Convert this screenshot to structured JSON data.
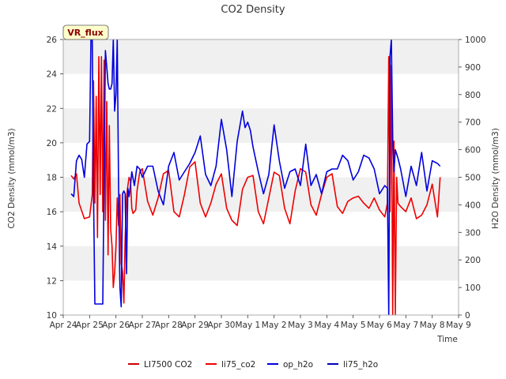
{
  "chart_data": {
    "type": "line",
    "title": "CO2 Density",
    "xlabel": "Time",
    "ylabel": "CO2 Density (mmol/m3)",
    "y2label": "H2O Density (mmol/m3)",
    "badge": "VR_flux",
    "ylim": [
      10,
      26
    ],
    "y2lim": [
      0,
      1000
    ],
    "xlim": [
      0,
      15
    ],
    "x_ticks": [
      "Apr 24",
      "Apr 25",
      "Apr 26",
      "Apr 27",
      "Apr 28",
      "Apr 29",
      "Apr 30",
      "May 1",
      "May 2",
      "May 3",
      "May 4",
      "May 5",
      "May 6",
      "May 7",
      "May 8",
      "May 9"
    ],
    "y_ticks": [
      10,
      12,
      14,
      16,
      18,
      20,
      22,
      24,
      26
    ],
    "y2_ticks": [
      0,
      100,
      200,
      300,
      400,
      500,
      600,
      700,
      800,
      900,
      1000
    ],
    "grid": "horizontal bands",
    "legend_position": "bottom",
    "colors": {
      "li75_co2": "#ee0000",
      "li7500_co2": "#cc0000",
      "op_h2o": "#0000dd",
      "li75_h2o": "#0000bb",
      "band": "#f0f0f0",
      "badge_bg": "#ffffcc"
    },
    "legend": [
      "LI7500 CO2",
      "li75_co2",
      "op_h2o",
      "li75_h2o"
    ],
    "series": [
      {
        "name": "li75_co2",
        "axis": "left",
        "color": "#ee0000",
        "x": [
          0.3,
          0.4,
          0.5,
          0.6,
          0.8,
          1.0,
          1.1,
          1.15,
          1.2,
          1.25,
          1.3,
          1.35,
          1.4,
          1.45,
          1.5,
          1.55,
          1.6,
          1.65,
          1.7,
          1.75,
          1.8,
          1.85,
          1.9,
          1.95,
          2.0,
          2.05,
          2.1,
          2.15,
          2.2,
          2.25,
          2.3,
          2.35,
          2.4,
          2.45,
          2.5,
          2.55,
          2.6,
          2.65,
          2.7,
          2.75,
          2.8,
          2.9,
          3.0,
          3.2,
          3.4,
          3.6,
          3.8,
          4.0,
          4.2,
          4.4,
          4.6,
          4.8,
          5.0,
          5.2,
          5.4,
          5.6,
          5.8,
          6.0,
          6.2,
          6.4,
          6.6,
          6.8,
          7.0,
          7.2,
          7.4,
          7.6,
          7.8,
          8.0,
          8.2,
          8.4,
          8.6,
          8.8,
          9.0,
          9.2,
          9.4,
          9.6,
          9.8,
          10.0,
          10.2,
          10.4,
          10.6,
          10.8,
          11.0,
          11.2,
          11.4,
          11.6,
          11.8,
          12.0,
          12.2,
          12.3,
          12.35,
          12.4,
          12.45,
          12.5,
          12.55,
          12.6,
          12.65,
          12.7,
          12.8,
          13.0,
          13.2,
          13.4,
          13.6,
          13.8,
          14.0,
          14.2,
          14.3
        ],
        "values": [
          18.1,
          17.9,
          18.2,
          16.5,
          15.6,
          15.7,
          17.0,
          23.6,
          16.5,
          22.7,
          14.5,
          25.0,
          17.0,
          25.0,
          16.0,
          24.8,
          15.5,
          22.4,
          13.5,
          21.0,
          15.0,
          14.0,
          11.6,
          12.5,
          14.0,
          16.8,
          15.2,
          17.0,
          13.0,
          12.5,
          10.7,
          14.5,
          16.8,
          17.5,
          18.0,
          17.8,
          16.2,
          15.9,
          16.0,
          16.1,
          17.2,
          18.3,
          18.5,
          16.6,
          15.8,
          16.8,
          18.2,
          18.4,
          16.0,
          15.7,
          17.0,
          18.6,
          18.9,
          16.5,
          15.7,
          16.5,
          17.6,
          18.2,
          16.2,
          15.5,
          15.2,
          17.3,
          18.0,
          18.1,
          16.0,
          15.3,
          16.8,
          18.3,
          18.1,
          16.2,
          15.3,
          17.2,
          18.5,
          18.3,
          16.4,
          15.8,
          17.0,
          18.0,
          18.2,
          16.3,
          15.9,
          16.6,
          16.8,
          16.9,
          16.5,
          16.2,
          16.8,
          16.1,
          15.7,
          16.5,
          25.0,
          16.0,
          24.5,
          10.0,
          20.1,
          10.0,
          18.0,
          16.5,
          16.3,
          16.0,
          16.8,
          15.6,
          15.8,
          16.4,
          17.6,
          15.7,
          18.0
        ]
      },
      {
        "name": "op_h2o",
        "axis": "right",
        "color": "#0000dd",
        "x": [
          0.3,
          0.4,
          0.5,
          0.6,
          0.7,
          0.8,
          0.9,
          1.0,
          1.05,
          1.1,
          1.15,
          1.2,
          1.3,
          1.4,
          1.5,
          1.6,
          1.7,
          1.75,
          1.8,
          1.85,
          1.9,
          1.95,
          2.0,
          2.05,
          2.1,
          2.15,
          2.2,
          2.25,
          2.3,
          2.35,
          2.4,
          2.45,
          2.5,
          2.55,
          2.6,
          2.7,
          2.8,
          2.9,
          3.0,
          3.2,
          3.4,
          3.6,
          3.8,
          4.0,
          4.2,
          4.4,
          4.6,
          4.8,
          5.0,
          5.2,
          5.4,
          5.6,
          5.8,
          6.0,
          6.2,
          6.4,
          6.6,
          6.8,
          6.9,
          7.0,
          7.1,
          7.2,
          7.4,
          7.6,
          7.8,
          8.0,
          8.2,
          8.4,
          8.6,
          8.8,
          9.0,
          9.2,
          9.4,
          9.6,
          9.8,
          10.0,
          10.2,
          10.4,
          10.6,
          10.8,
          11.0,
          11.2,
          11.4,
          11.6,
          11.8,
          12.0,
          12.2,
          12.3,
          12.35,
          12.4,
          12.45,
          12.5,
          12.55,
          12.6,
          12.7,
          12.8,
          13.0,
          13.2,
          13.4,
          13.6,
          13.8,
          14.0,
          14.2,
          14.3
        ],
        "values": [
          440,
          430,
          560,
          580,
          565,
          500,
          620,
          630,
          1000,
          1000,
          440,
          40,
          40,
          40,
          40,
          960,
          840,
          820,
          820,
          840,
          1000,
          740,
          800,
          1000,
          460,
          100,
          30,
          440,
          450,
          440,
          150,
          460,
          430,
          470,
          520,
          470,
          540,
          530,
          500,
          540,
          540,
          450,
          400,
          540,
          590,
          490,
          520,
          550,
          590,
          650,
          510,
          470,
          540,
          710,
          600,
          430,
          630,
          740,
          680,
          700,
          670,
          610,
          520,
          440,
          510,
          690,
          560,
          460,
          520,
          530,
          470,
          620,
          470,
          510,
          440,
          520,
          530,
          530,
          580,
          560,
          490,
          520,
          580,
          570,
          530,
          440,
          470,
          460,
          0,
          940,
          1000,
          640,
          520,
          600,
          570,
          530,
          430,
          540,
          470,
          590,
          450,
          560,
          550,
          540
        ]
      }
    ]
  }
}
